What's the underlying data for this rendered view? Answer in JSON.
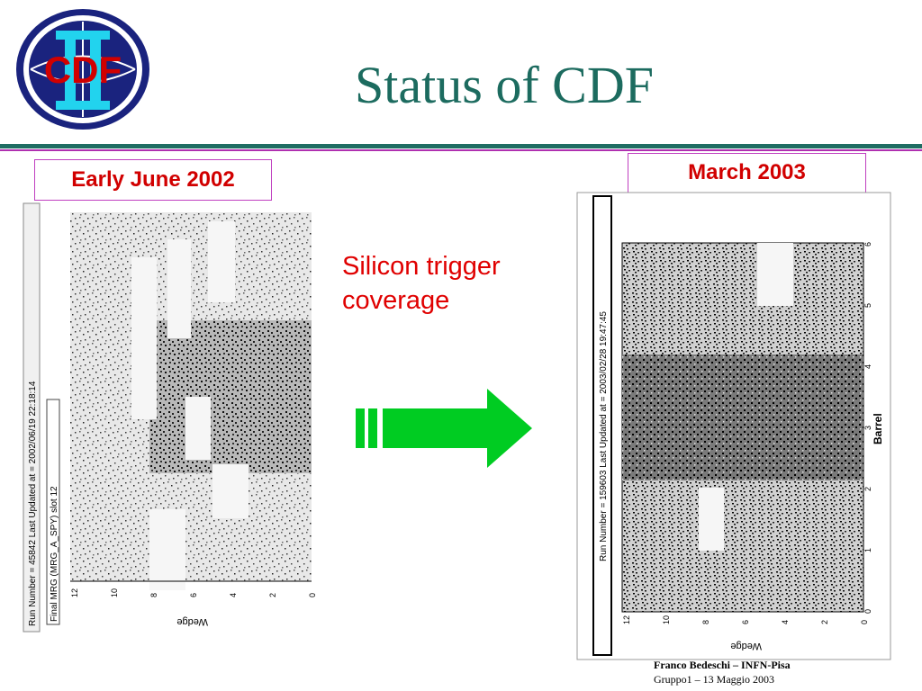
{
  "slide": {
    "title": "Status of CDF",
    "logo_text": "CDF",
    "label_left": "Early June 2002",
    "label_right": "March 2003",
    "coverage_text": "Silicon trigger coverage",
    "footer_author": "Franco Bedeschi – INFN-Pisa",
    "footer_meeting": "Gruppo1 – 13 Maggio 2003"
  },
  "plot_left": {
    "run_text": "Run Number = 45842   Last Updated at = 2002/06/19 22:18:14",
    "subtitle": "Final MRG (MRG_A_SPY) slot 12",
    "xlabel": "Wedge",
    "xticks": [
      "12",
      "10",
      "8",
      "6",
      "4",
      "2",
      "0"
    ]
  },
  "plot_right": {
    "run_text": "Run Number = 159603   Last Updated at = 2003/02/28 19:47:45",
    "xlabel": "Wedge",
    "ylabel": "Barrel",
    "xticks": [
      "12",
      "10",
      "8",
      "6",
      "4",
      "2",
      "0"
    ],
    "yticks": [
      "0",
      "1",
      "2",
      "3",
      "4",
      "5",
      "6"
    ]
  },
  "colors": {
    "title": "#1c6b5f",
    "label_text": "#d10000",
    "arrow": "#00cc22"
  }
}
